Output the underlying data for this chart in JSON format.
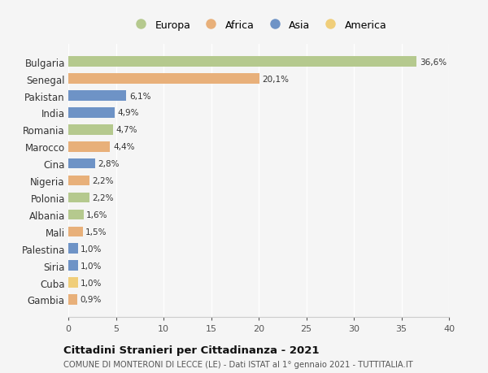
{
  "countries": [
    "Bulgaria",
    "Senegal",
    "Pakistan",
    "India",
    "Romania",
    "Marocco",
    "Cina",
    "Nigeria",
    "Polonia",
    "Albania",
    "Mali",
    "Palestina",
    "Siria",
    "Cuba",
    "Gambia"
  ],
  "values": [
    36.6,
    20.1,
    6.1,
    4.9,
    4.7,
    4.4,
    2.8,
    2.2,
    2.2,
    1.6,
    1.5,
    1.0,
    1.0,
    1.0,
    0.9
  ],
  "labels": [
    "36,6%",
    "20,1%",
    "6,1%",
    "4,9%",
    "4,7%",
    "4,4%",
    "2,8%",
    "2,2%",
    "2,2%",
    "1,6%",
    "1,5%",
    "1,0%",
    "1,0%",
    "1,0%",
    "0,9%"
  ],
  "continents": [
    "Europa",
    "Africa",
    "Asia",
    "Asia",
    "Europa",
    "Africa",
    "Asia",
    "Africa",
    "Europa",
    "Europa",
    "Africa",
    "Asia",
    "Asia",
    "America",
    "Africa"
  ],
  "continent_colors": {
    "Europa": "#b5c98e",
    "Africa": "#e8b07a",
    "Asia": "#6e93c6",
    "America": "#f0ce7a"
  },
  "legend_order": [
    "Europa",
    "Africa",
    "Asia",
    "America"
  ],
  "title": "Cittadini Stranieri per Cittadinanza - 2021",
  "subtitle": "COMUNE DI MONTERONI DI LECCE (LE) - Dati ISTAT al 1° gennaio 2021 - TUTTITALIA.IT",
  "xlim": [
    0,
    40
  ],
  "xticks": [
    0,
    5,
    10,
    15,
    20,
    25,
    30,
    35,
    40
  ],
  "background_color": "#f5f5f5",
  "grid_color": "#ffffff",
  "bar_height": 0.6
}
